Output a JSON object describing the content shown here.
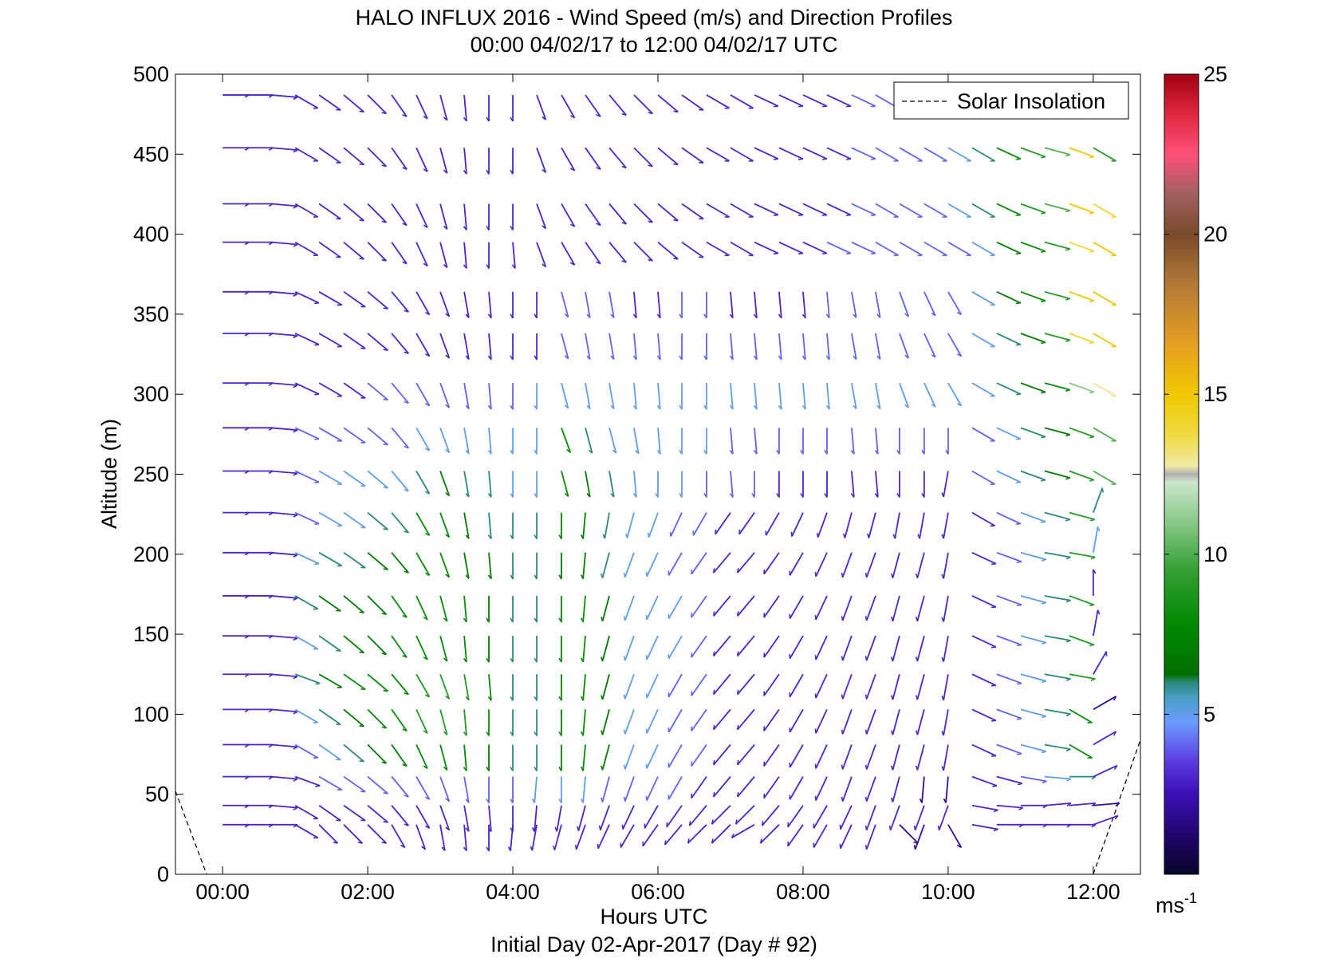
{
  "chart_data": {
    "type": "wind-barb-profile",
    "title": "HALO INFLUX 2016 - Wind Speed (m/s) and Direction Profiles",
    "subtitle": "00:00 04/02/17 to 12:00 04/02/17  UTC",
    "xlabel": "Hours UTC",
    "xlabel2": "Initial Day 02-Apr-2017 (Day # 92)",
    "ylabel": "Altitude (m)",
    "xlim_hours": [
      -0.65,
      12.65
    ],
    "ylim": [
      0,
      500
    ],
    "x_ticks": [
      0,
      2,
      4,
      6,
      8,
      10,
      12
    ],
    "x_tick_labels": [
      "00:00",
      "02:00",
      "04:00",
      "06:00",
      "08:00",
      "10:00",
      "12:00"
    ],
    "y_ticks": [
      0,
      50,
      100,
      150,
      200,
      250,
      300,
      350,
      400,
      450,
      500
    ],
    "y_tick_labels": [
      "0",
      "50",
      "100",
      "150",
      "200",
      "250",
      "300",
      "350",
      "400",
      "450",
      "500"
    ],
    "legend": {
      "label": "Solar Insolation",
      "position": "top-right"
    },
    "colorbar": {
      "range": [
        0,
        25
      ],
      "ticks": [
        5,
        10,
        15,
        20,
        25
      ],
      "tick_labels": [
        "5",
        "10",
        "15",
        "20",
        "25"
      ],
      "unit_base": "ms",
      "unit_sup": "-1"
    },
    "solar_insolation": {
      "left": [
        {
          "hours": -0.65,
          "alt": 52
        },
        {
          "hours": -0.22,
          "alt": 0
        }
      ],
      "right": [
        {
          "hours": 12.0,
          "alt": 0
        },
        {
          "hours": 12.65,
          "alt": 84
        }
      ]
    },
    "altitudes": [
      31,
      43,
      61,
      81,
      103,
      125,
      149,
      174,
      201,
      226,
      252,
      279,
      307,
      338,
      364,
      395,
      419,
      454,
      487
    ],
    "time_hours": [
      0.0,
      0.33,
      0.67,
      1.0,
      1.33,
      1.67,
      2.0,
      2.33,
      2.67,
      3.0,
      3.33,
      3.67,
      4.0,
      4.33,
      4.67,
      5.0,
      5.33,
      5.67,
      6.0,
      6.33,
      6.67,
      7.0,
      7.33,
      7.67,
      8.0,
      8.33,
      8.67,
      9.0,
      9.33,
      9.67,
      10.0,
      10.33,
      10.67,
      11.0,
      11.33,
      11.67,
      12.0
    ],
    "wind_speed_ms": [
      [
        3,
        3,
        3,
        3,
        3,
        3,
        3,
        3,
        3,
        3,
        3,
        3,
        3,
        3,
        3,
        3,
        3,
        3,
        3,
        3,
        3,
        3,
        3,
        3,
        3,
        3,
        3,
        3,
        2,
        2,
        2,
        3,
        3,
        3,
        3,
        3,
        3
      ],
      [
        3,
        3,
        3,
        3,
        3,
        3,
        3,
        3,
        3,
        3,
        3,
        3,
        3,
        3,
        3,
        3,
        3,
        3,
        3,
        3,
        3,
        3,
        3,
        3,
        3,
        3,
        3,
        3,
        3,
        3,
        3,
        3,
        3,
        3,
        3,
        3,
        2
      ],
      [
        3,
        3,
        3,
        3,
        4,
        4,
        4,
        4,
        4,
        4,
        4,
        4,
        4,
        5,
        5,
        5,
        4,
        4,
        4,
        4,
        3,
        3,
        3,
        3,
        3,
        3,
        3,
        3,
        3,
        2,
        2,
        3,
        3,
        4,
        5,
        6,
        3
      ],
      [
        3,
        3,
        3,
        4,
        5,
        6,
        7,
        7,
        8,
        8,
        8,
        7,
        6,
        6,
        8,
        8,
        7,
        5,
        5,
        4,
        4,
        3,
        3,
        3,
        3,
        3,
        3,
        3,
        3,
        3,
        3,
        3,
        4,
        5,
        6,
        8,
        3
      ],
      [
        3,
        3,
        3,
        5,
        6,
        7,
        8,
        8,
        9,
        9,
        9,
        8,
        6,
        6,
        8,
        8,
        7,
        5,
        5,
        4,
        4,
        3,
        3,
        3,
        3,
        3,
        3,
        3,
        3,
        3,
        3,
        3,
        4,
        5,
        6,
        8,
        2
      ],
      [
        3,
        3,
        3,
        6,
        7,
        8,
        8,
        8,
        9,
        9,
        9,
        8,
        6,
        6,
        8,
        8,
        7,
        5,
        5,
        4,
        4,
        3,
        3,
        3,
        3,
        3,
        3,
        3,
        3,
        3,
        3,
        3,
        4,
        5,
        6,
        9,
        3
      ],
      [
        3,
        3,
        3,
        5,
        6,
        7,
        7,
        8,
        8,
        8,
        8,
        7,
        6,
        6,
        8,
        8,
        7,
        5,
        5,
        5,
        4,
        3,
        3,
        3,
        3,
        3,
        3,
        3,
        3,
        3,
        3,
        3,
        4,
        5,
        6,
        9,
        3
      ],
      [
        3,
        3,
        3,
        6,
        7,
        7,
        7,
        8,
        8,
        8,
        8,
        7,
        6,
        6,
        8,
        8,
        7,
        5,
        5,
        5,
        4,
        3,
        3,
        3,
        3,
        3,
        3,
        3,
        3,
        3,
        3,
        3,
        4,
        5,
        6,
        9,
        3
      ],
      [
        3,
        3,
        3,
        5,
        6,
        6,
        7,
        7,
        8,
        8,
        7,
        7,
        6,
        6,
        7,
        7,
        6,
        5,
        5,
        4,
        4,
        3,
        3,
        3,
        3,
        3,
        3,
        3,
        3,
        3,
        3,
        3,
        4,
        5,
        6,
        9,
        5
      ],
      [
        3,
        3,
        3,
        4,
        5,
        5,
        6,
        6,
        8,
        8,
        7,
        6,
        6,
        6,
        8,
        7,
        6,
        5,
        5,
        4,
        4,
        3,
        3,
        3,
        3,
        3,
        3,
        3,
        3,
        3,
        3,
        3,
        4,
        5,
        6,
        9,
        6
      ],
      [
        3,
        3,
        3,
        4,
        5,
        5,
        5,
        5,
        6,
        7,
        6,
        6,
        5,
        5,
        8,
        7,
        6,
        5,
        5,
        5,
        4,
        4,
        4,
        3,
        3,
        3,
        3,
        3,
        3,
        3,
        3,
        4,
        5,
        6,
        7,
        9,
        10
      ],
      [
        3,
        3,
        3,
        4,
        4,
        4,
        4,
        4,
        5,
        5,
        5,
        5,
        5,
        5,
        8,
        6,
        5,
        5,
        5,
        5,
        5,
        4,
        4,
        4,
        4,
        4,
        4,
        4,
        4,
        4,
        4,
        4,
        5,
        6,
        7,
        9,
        10
      ],
      [
        3,
        3,
        3,
        3,
        3,
        3,
        4,
        4,
        4,
        4,
        4,
        4,
        4,
        5,
        5,
        5,
        5,
        5,
        5,
        5,
        5,
        5,
        5,
        5,
        5,
        5,
        5,
        5,
        5,
        5,
        5,
        5,
        6,
        7,
        8,
        11,
        13
      ],
      [
        3,
        3,
        3,
        3,
        3,
        3,
        3,
        3,
        3,
        3,
        3,
        3,
        3,
        3,
        4,
        4,
        4,
        4,
        4,
        4,
        4,
        4,
        4,
        4,
        4,
        4,
        4,
        4,
        4,
        4,
        4,
        5,
        6,
        7,
        9,
        14,
        15
      ],
      [
        3,
        3,
        3,
        3,
        3,
        3,
        3,
        3,
        3,
        3,
        3,
        3,
        3,
        3,
        4,
        4,
        4,
        3,
        3,
        4,
        4,
        3,
        3,
        3,
        3,
        4,
        4,
        4,
        4,
        4,
        4,
        5,
        7,
        8,
        9,
        15,
        15
      ],
      [
        3,
        3,
        3,
        3,
        3,
        3,
        3,
        3,
        3,
        3,
        3,
        3,
        3,
        3,
        3,
        3,
        3,
        3,
        3,
        3,
        3,
        3,
        3,
        3,
        3,
        4,
        4,
        4,
        4,
        4,
        4,
        5,
        7,
        8,
        9,
        14,
        15
      ],
      [
        3,
        3,
        3,
        3,
        3,
        3,
        3,
        3,
        3,
        3,
        3,
        3,
        3,
        3,
        3,
        3,
        3,
        3,
        3,
        3,
        3,
        3,
        3,
        3,
        3,
        3,
        4,
        4,
        4,
        4,
        5,
        6,
        8,
        9,
        10,
        15,
        14
      ],
      [
        3,
        3,
        3,
        3,
        3,
        3,
        3,
        3,
        3,
        3,
        3,
        3,
        3,
        3,
        3,
        3,
        3,
        3,
        3,
        3,
        3,
        3,
        3,
        3,
        3,
        3,
        4,
        4,
        4,
        4,
        5,
        6,
        8,
        9,
        10,
        15,
        9
      ],
      [
        3,
        3,
        3,
        3,
        3,
        3,
        3,
        3,
        3,
        3,
        3,
        3,
        3,
        3,
        3,
        3,
        3,
        3,
        3,
        3,
        3,
        3,
        3,
        3,
        3,
        3,
        4,
        4,
        4,
        4,
        4,
        4,
        4,
        4,
        4,
        4,
        4
      ]
    ],
    "wind_dir_deg": [
      [
        270,
        270,
        270,
        300,
        315,
        315,
        315,
        330,
        340,
        350,
        355,
        0,
        5,
        10,
        15,
        20,
        25,
        30,
        35,
        40,
        45,
        45,
        60,
        45,
        35,
        30,
        25,
        20,
        315,
        20,
        330,
        280,
        270,
        270,
        270,
        270,
        250
      ],
      [
        270,
        270,
        275,
        300,
        305,
        305,
        310,
        320,
        330,
        340,
        350,
        355,
        0,
        5,
        10,
        15,
        20,
        25,
        30,
        35,
        40,
        45,
        45,
        40,
        35,
        30,
        25,
        20,
        20,
        20,
        20,
        280,
        275,
        270,
        265,
        265,
        265
      ],
      [
        270,
        270,
        275,
        290,
        300,
        305,
        310,
        320,
        330,
        340,
        350,
        0,
        0,
        5,
        0,
        5,
        15,
        20,
        25,
        30,
        35,
        40,
        40,
        35,
        30,
        25,
        20,
        20,
        15,
        5,
        5,
        290,
        285,
        280,
        275,
        270,
        245
      ],
      [
        270,
        270,
        275,
        300,
        305,
        310,
        315,
        325,
        335,
        345,
        355,
        0,
        0,
        0,
        0,
        5,
        15,
        20,
        25,
        30,
        35,
        40,
        40,
        35,
        30,
        25,
        20,
        20,
        15,
        15,
        10,
        295,
        290,
        285,
        280,
        300,
        240
      ],
      [
        270,
        270,
        275,
        300,
        305,
        310,
        315,
        325,
        335,
        345,
        355,
        0,
        0,
        0,
        0,
        5,
        15,
        20,
        25,
        30,
        35,
        40,
        40,
        35,
        30,
        25,
        20,
        20,
        15,
        15,
        10,
        295,
        290,
        285,
        280,
        300,
        240
      ],
      [
        270,
        270,
        275,
        290,
        300,
        305,
        310,
        320,
        330,
        340,
        350,
        355,
        0,
        0,
        0,
        5,
        15,
        20,
        25,
        30,
        35,
        40,
        40,
        35,
        30,
        25,
        20,
        20,
        15,
        15,
        10,
        295,
        290,
        285,
        280,
        280,
        210
      ],
      [
        270,
        270,
        275,
        300,
        305,
        310,
        315,
        325,
        335,
        345,
        355,
        0,
        0,
        0,
        0,
        5,
        15,
        20,
        25,
        30,
        35,
        40,
        40,
        35,
        30,
        25,
        20,
        20,
        15,
        15,
        10,
        295,
        290,
        285,
        280,
        290,
        190
      ],
      [
        270,
        270,
        275,
        300,
        305,
        310,
        315,
        325,
        335,
        345,
        355,
        0,
        0,
        0,
        0,
        5,
        15,
        20,
        25,
        30,
        35,
        40,
        40,
        35,
        30,
        25,
        20,
        20,
        15,
        15,
        10,
        295,
        290,
        285,
        280,
        290,
        180
      ],
      [
        270,
        270,
        275,
        295,
        300,
        305,
        310,
        320,
        330,
        340,
        350,
        355,
        0,
        0,
        0,
        5,
        15,
        20,
        25,
        30,
        35,
        40,
        40,
        35,
        30,
        25,
        20,
        20,
        15,
        15,
        10,
        295,
        290,
        285,
        280,
        280,
        190
      ],
      [
        270,
        270,
        275,
        295,
        300,
        305,
        310,
        320,
        330,
        340,
        350,
        355,
        0,
        0,
        0,
        5,
        10,
        15,
        20,
        25,
        30,
        35,
        35,
        30,
        25,
        20,
        15,
        15,
        10,
        10,
        10,
        300,
        295,
        290,
        285,
        285,
        200
      ],
      [
        270,
        270,
        275,
        295,
        300,
        305,
        310,
        320,
        330,
        340,
        350,
        355,
        0,
        0,
        345,
        350,
        350,
        355,
        0,
        0,
        0,
        355,
        0,
        0,
        0,
        0,
        355,
        355,
        0,
        0,
        10,
        300,
        295,
        290,
        285,
        290,
        300
      ],
      [
        270,
        270,
        275,
        295,
        300,
        305,
        310,
        320,
        330,
        340,
        350,
        355,
        0,
        0,
        340,
        345,
        345,
        350,
        355,
        0,
        0,
        355,
        355,
        0,
        0,
        0,
        355,
        355,
        0,
        0,
        0,
        300,
        295,
        290,
        285,
        290,
        300
      ],
      [
        270,
        270,
        275,
        295,
        300,
        305,
        310,
        320,
        330,
        340,
        350,
        355,
        0,
        0,
        345,
        350,
        350,
        355,
        355,
        0,
        0,
        355,
        355,
        355,
        355,
        355,
        350,
        350,
        340,
        335,
        330,
        300,
        295,
        290,
        285,
        290,
        300
      ],
      [
        270,
        270,
        275,
        295,
        300,
        305,
        310,
        320,
        330,
        340,
        350,
        355,
        0,
        0,
        345,
        350,
        350,
        355,
        355,
        0,
        0,
        355,
        355,
        355,
        355,
        355,
        350,
        350,
        340,
        335,
        330,
        300,
        295,
        290,
        285,
        290,
        300
      ],
      [
        270,
        270,
        275,
        295,
        300,
        305,
        310,
        320,
        330,
        340,
        350,
        355,
        0,
        0,
        345,
        350,
        350,
        355,
        355,
        0,
        0,
        355,
        355,
        355,
        355,
        355,
        350,
        350,
        340,
        335,
        330,
        300,
        295,
        290,
        285,
        290,
        300
      ],
      [
        270,
        270,
        275,
        300,
        305,
        310,
        315,
        325,
        335,
        345,
        355,
        0,
        355,
        340,
        330,
        325,
        320,
        315,
        310,
        305,
        300,
        300,
        295,
        295,
        295,
        295,
        295,
        300,
        300,
        300,
        300,
        300,
        295,
        290,
        285,
        290,
        300
      ],
      [
        270,
        270,
        275,
        300,
        305,
        310,
        315,
        325,
        335,
        345,
        355,
        0,
        0,
        340,
        330,
        325,
        320,
        315,
        310,
        305,
        300,
        300,
        295,
        295,
        295,
        295,
        295,
        300,
        300,
        300,
        300,
        300,
        295,
        290,
        285,
        290,
        300
      ],
      [
        270,
        270,
        275,
        300,
        305,
        310,
        315,
        325,
        335,
        345,
        355,
        0,
        0,
        340,
        330,
        325,
        320,
        315,
        310,
        305,
        300,
        300,
        295,
        295,
        295,
        295,
        295,
        300,
        300,
        300,
        300,
        300,
        295,
        290,
        285,
        290,
        300
      ],
      [
        270,
        270,
        275,
        300,
        305,
        310,
        315,
        325,
        335,
        345,
        355,
        0,
        0,
        340,
        330,
        325,
        320,
        315,
        310,
        305,
        300,
        300,
        295,
        295,
        295,
        295,
        295,
        300,
        300,
        300,
        300,
        300,
        300,
        300,
        300,
        300,
        300
      ]
    ]
  }
}
